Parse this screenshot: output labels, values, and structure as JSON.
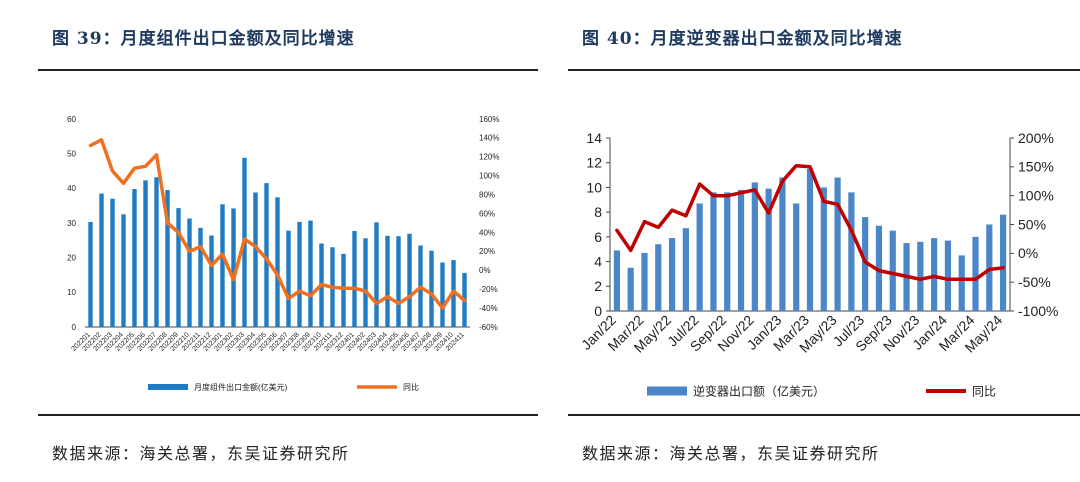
{
  "figures": [
    {
      "title": "图 39：月度组件出口金额及同比增速",
      "source": "数据来源：海关总署，东吴证券研究所"
    },
    {
      "title": "图 40：月度逆变器出口金额及同比增速",
      "source": "数据来源：海关总署，东吴证券研究所"
    }
  ],
  "chart_data": [
    {
      "type": "bar",
      "bar_color": "#1f7cc4",
      "line_color": "#f07020",
      "left_axis": {
        "min": 0,
        "max": 60,
        "ticks": [
          0,
          10,
          20,
          30,
          40,
          50,
          60
        ]
      },
      "right_axis": {
        "min": -60,
        "max": 160,
        "ticks": [
          "-60%",
          "-40%",
          "-20%",
          "0%",
          "20%",
          "40%",
          "60%",
          "80%",
          "100%",
          "120%",
          "140%",
          "160%"
        ]
      },
      "categories": [
        "202201",
        "202202",
        "202203",
        "202204",
        "202205",
        "202206",
        "202207",
        "202208",
        "202209",
        "202210",
        "202211",
        "202212",
        "202301",
        "202302",
        "202303",
        "202304",
        "202305",
        "202306",
        "202307",
        "202308",
        "202309",
        "202310",
        "202311",
        "202312",
        "202401",
        "202402",
        "202403",
        "202404",
        "202405",
        "202406",
        "202407",
        "202408",
        "202409",
        "202410",
        "202411"
      ],
      "tick_labels": [
        "202201",
        "202202",
        "202203",
        "202204",
        "202205",
        "202206",
        "202207",
        "202208",
        "202209",
        "202210",
        "202211",
        "202212",
        "202301",
        "202302",
        "202303",
        "202304",
        "202305",
        "202306",
        "202307",
        "202308",
        "202309",
        "202310",
        "202311",
        "202312",
        "202401",
        "202402",
        "202403",
        "202404",
        "202405",
        "202406",
        "202407",
        "202408",
        "202409",
        "202410",
        "202411"
      ],
      "series": [
        {
          "name": "月度组件出口金额(亿美元)",
          "kind": "bar",
          "axis": "left",
          "values": [
            30.3,
            38.5,
            37.0,
            32.5,
            39.8,
            42.3,
            43.2,
            39.5,
            34.3,
            31.3,
            28.6,
            26.4,
            35.4,
            34.2,
            48.8,
            38.8,
            41.5,
            37.4,
            27.8,
            30.3,
            30.7,
            24.1,
            23.0,
            21.1,
            27.7,
            25.6,
            30.2,
            26.3,
            26.2,
            26.9,
            23.5,
            22.0,
            18.6,
            19.3,
            15.6
          ]
        },
        {
          "name": "同比",
          "kind": "line",
          "axis": "right",
          "values": [
            132,
            138,
            105,
            92,
            108,
            110,
            122,
            50,
            40,
            20,
            25,
            5,
            17,
            -10,
            33,
            25,
            12,
            -5,
            -30,
            -22,
            -27,
            -15,
            -18,
            -19,
            -19,
            -22,
            -35,
            -28,
            -35,
            -28,
            -18,
            -25,
            -40,
            -22,
            -32
          ]
        }
      ],
      "legend_placement": "bottom"
    },
    {
      "type": "bar",
      "bar_color": "#4a86c8",
      "line_color": "#c00000",
      "left_axis": {
        "min": 0,
        "max": 14,
        "ticks": [
          0,
          2,
          4,
          6,
          8,
          10,
          12,
          14
        ]
      },
      "right_axis": {
        "min": -100,
        "max": 200,
        "ticks": [
          "-100%",
          "-50%",
          "0%",
          "50%",
          "100%",
          "150%",
          "200%"
        ]
      },
      "categories": [
        "Jan/22",
        "Feb/22",
        "Mar/22",
        "Apr/22",
        "May/22",
        "Jun/22",
        "Jul/22",
        "Aug/22",
        "Sep/22",
        "Oct/22",
        "Nov/22",
        "Dec/22",
        "Jan/23",
        "Feb/23",
        "Mar/23",
        "Apr/23",
        "May/23",
        "Jun/23",
        "Jul/23",
        "Aug/23",
        "Sep/23",
        "Oct/23",
        "Nov/23",
        "Dec/23",
        "Jan/24",
        "Feb/24",
        "Mar/24",
        "Apr/24",
        "May/24"
      ],
      "tick_labels": [
        "Jan/22",
        "Mar/22",
        "May/22",
        "Jul/22",
        "Sep/22",
        "Nov/22",
        "Jan/23",
        "Mar/23",
        "May/23",
        "Jul/23",
        "Sep/23",
        "Nov/23",
        "Jan/24",
        "Mar/24",
        "May/24"
      ],
      "series": [
        {
          "name": "逆变器出口额（亿美元）",
          "kind": "bar",
          "axis": "left",
          "values": [
            4.9,
            3.5,
            4.7,
            5.4,
            5.9,
            6.7,
            8.7,
            9.6,
            9.6,
            9.8,
            10.4,
            9.9,
            10.8,
            8.7,
            11.5,
            10.0,
            10.8,
            9.6,
            7.6,
            6.9,
            6.5,
            5.5,
            5.6,
            5.9,
            5.7,
            4.5,
            6.0,
            7.0,
            7.8
          ]
        },
        {
          "name": "同比",
          "kind": "line",
          "axis": "right",
          "values": [
            40,
            5,
            55,
            45,
            75,
            65,
            120,
            100,
            100,
            105,
            110,
            70,
            125,
            152,
            150,
            90,
            85,
            40,
            -15,
            -30,
            -35,
            -40,
            -45,
            -40,
            -45,
            -45,
            -45,
            -28,
            -25
          ]
        }
      ],
      "legend_placement": "bottom"
    }
  ]
}
